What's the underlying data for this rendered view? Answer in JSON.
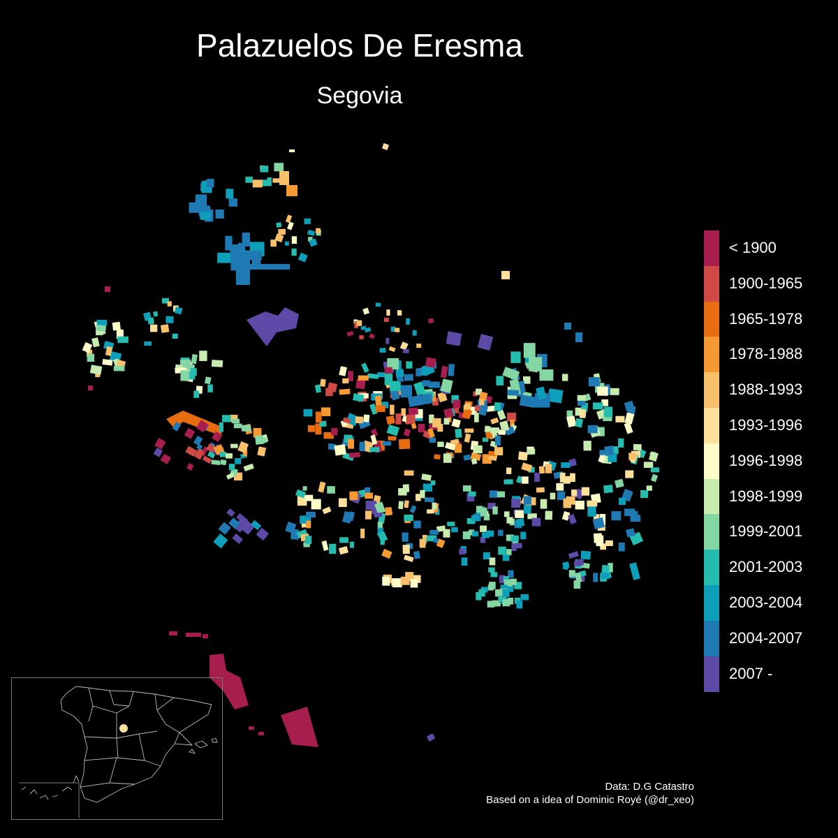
{
  "title": "Palazuelos De Eresma",
  "subtitle": "Segovia",
  "legend": {
    "items": [
      {
        "label": "< 1900",
        "color": "#a71d4e"
      },
      {
        "label": "1900-1965",
        "color": "#cf4a47"
      },
      {
        "label": "1965-1978",
        "color": "#e86c10"
      },
      {
        "label": "1978-1988",
        "color": "#f59a32"
      },
      {
        "label": "1988-1993",
        "color": "#f8c06b"
      },
      {
        "label": "1993-1996",
        "color": "#fde09b"
      },
      {
        "label": "1996-1998",
        "color": "#fdfcc8"
      },
      {
        "label": "1998-1999",
        "color": "#c8ecae"
      },
      {
        "label": "1999-2001",
        "color": "#84d7a3"
      },
      {
        "label": "2001-2003",
        "color": "#25bcb0"
      },
      {
        "label": "2003-2004",
        "color": "#0d9eb9"
      },
      {
        "label": "2004-2007",
        "color": "#1f7ab4"
      },
      {
        "label": "2007 -",
        "color": "#5d4aa6"
      }
    ]
  },
  "credits": {
    "line1": "Data: D.G Catastro",
    "line2": "Based on a idea of Dominic Royé (@dr_xeo)"
  },
  "inset": {
    "location_marker_color": "#fde09b"
  }
}
